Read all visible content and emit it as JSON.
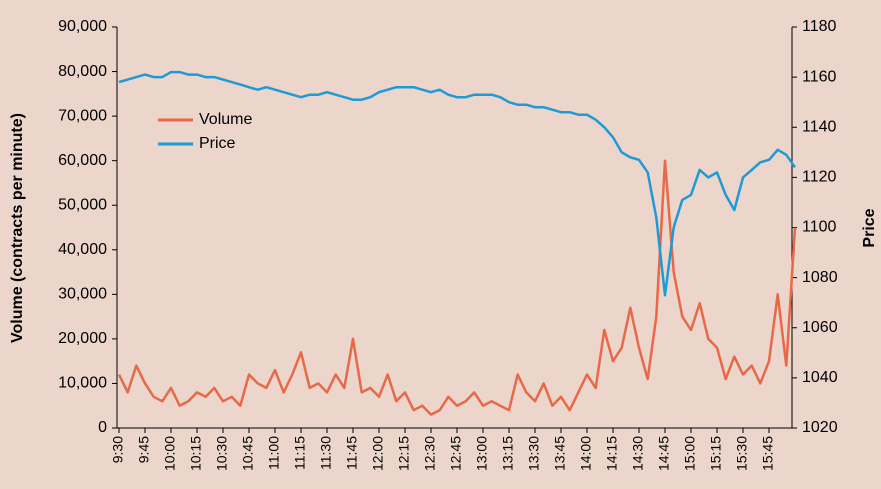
{
  "chart_data": {
    "type": "line",
    "categories": [
      "9:30",
      null,
      null,
      "9:45",
      null,
      null,
      "10:00",
      null,
      null,
      "10:15",
      null,
      null,
      "10:30",
      null,
      null,
      "10:45",
      null,
      null,
      "11:00",
      null,
      null,
      "11:15",
      null,
      null,
      "11:30",
      null,
      null,
      "11:45",
      null,
      null,
      "12:00",
      null,
      null,
      "12:15",
      null,
      null,
      "12:30",
      null,
      null,
      "12:45",
      null,
      null,
      "13:00",
      null,
      null,
      "13:15",
      null,
      null,
      "13:30",
      null,
      null,
      "13:45",
      null,
      null,
      "14:00",
      null,
      null,
      "14:15",
      null,
      null,
      "14:30",
      null,
      null,
      "14:45",
      null,
      null,
      "15:00",
      null,
      null,
      "15:15",
      null,
      null,
      "15:30",
      null,
      null,
      "15:45",
      null,
      null,
      null
    ],
    "series": [
      {
        "name": "Volume",
        "color": "#e8694a",
        "axis": "y",
        "values": [
          12000,
          8000,
          14000,
          10000,
          7000,
          6000,
          9000,
          5000,
          6000,
          8000,
          7000,
          9000,
          6000,
          7000,
          5000,
          12000,
          10000,
          9000,
          13000,
          8000,
          12000,
          17000,
          9000,
          10000,
          8000,
          12000,
          9000,
          20000,
          8000,
          9000,
          7000,
          12000,
          6000,
          8000,
          4000,
          5000,
          3000,
          4000,
          7000,
          5000,
          6000,
          8000,
          5000,
          6000,
          5000,
          4000,
          12000,
          8000,
          6000,
          10000,
          5000,
          7000,
          4000,
          8000,
          12000,
          9000,
          22000,
          15000,
          18000,
          27000,
          18000,
          11000,
          25000,
          60000,
          35000,
          25000,
          22000,
          28000,
          20000,
          18000,
          11000,
          16000,
          12000,
          14000,
          10000,
          15000,
          30000,
          14000,
          45000
        ]
      },
      {
        "name": "Price",
        "color": "#1e9ad6",
        "axis": "y2",
        "values": [
          1158,
          1159,
          1160,
          1161,
          1160,
          1160,
          1162,
          1162,
          1161,
          1161,
          1160,
          1160,
          1159,
          1158,
          1157,
          1156,
          1155,
          1156,
          1155,
          1154,
          1153,
          1152,
          1153,
          1153,
          1154,
          1153,
          1152,
          1151,
          1151,
          1152,
          1154,
          1155,
          1156,
          1156,
          1156,
          1155,
          1154,
          1155,
          1153,
          1152,
          1152,
          1153,
          1153,
          1153,
          1152,
          1150,
          1149,
          1149,
          1148,
          1148,
          1147,
          1146,
          1146,
          1145,
          1145,
          1143,
          1140,
          1136,
          1130,
          1128,
          1127,
          1122,
          1104,
          1073,
          1100,
          1111,
          1113,
          1123,
          1120,
          1122,
          1113,
          1107,
          1120,
          1123,
          1126,
          1127,
          1131,
          1129,
          1124
        ]
      }
    ],
    "ylabel": "Volume (contracts per minute)",
    "y2label": "Price",
    "ylim": [
      0,
      90000
    ],
    "yticks": [
      0,
      {
        "value": 10000,
        "label": "10,000"
      },
      {
        "value": 20000,
        "label": "20,000"
      },
      {
        "value": 30000,
        "label": "30,000"
      },
      {
        "value": 40000,
        "label": "40,000"
      },
      {
        "value": 50000,
        "label": "50,000"
      },
      {
        "value": 60000,
        "label": "60,000"
      },
      {
        "value": 70000,
        "label": "70,000"
      },
      {
        "value": 80000,
        "label": "80,000"
      },
      {
        "value": 90000,
        "label": "90,000"
      }
    ],
    "y2lim": [
      1020,
      1180
    ],
    "y2ticks": [
      1020,
      1040,
      1060,
      1080,
      1100,
      1120,
      1140,
      1160,
      1180
    ],
    "grid": false,
    "legend": "upper left"
  }
}
